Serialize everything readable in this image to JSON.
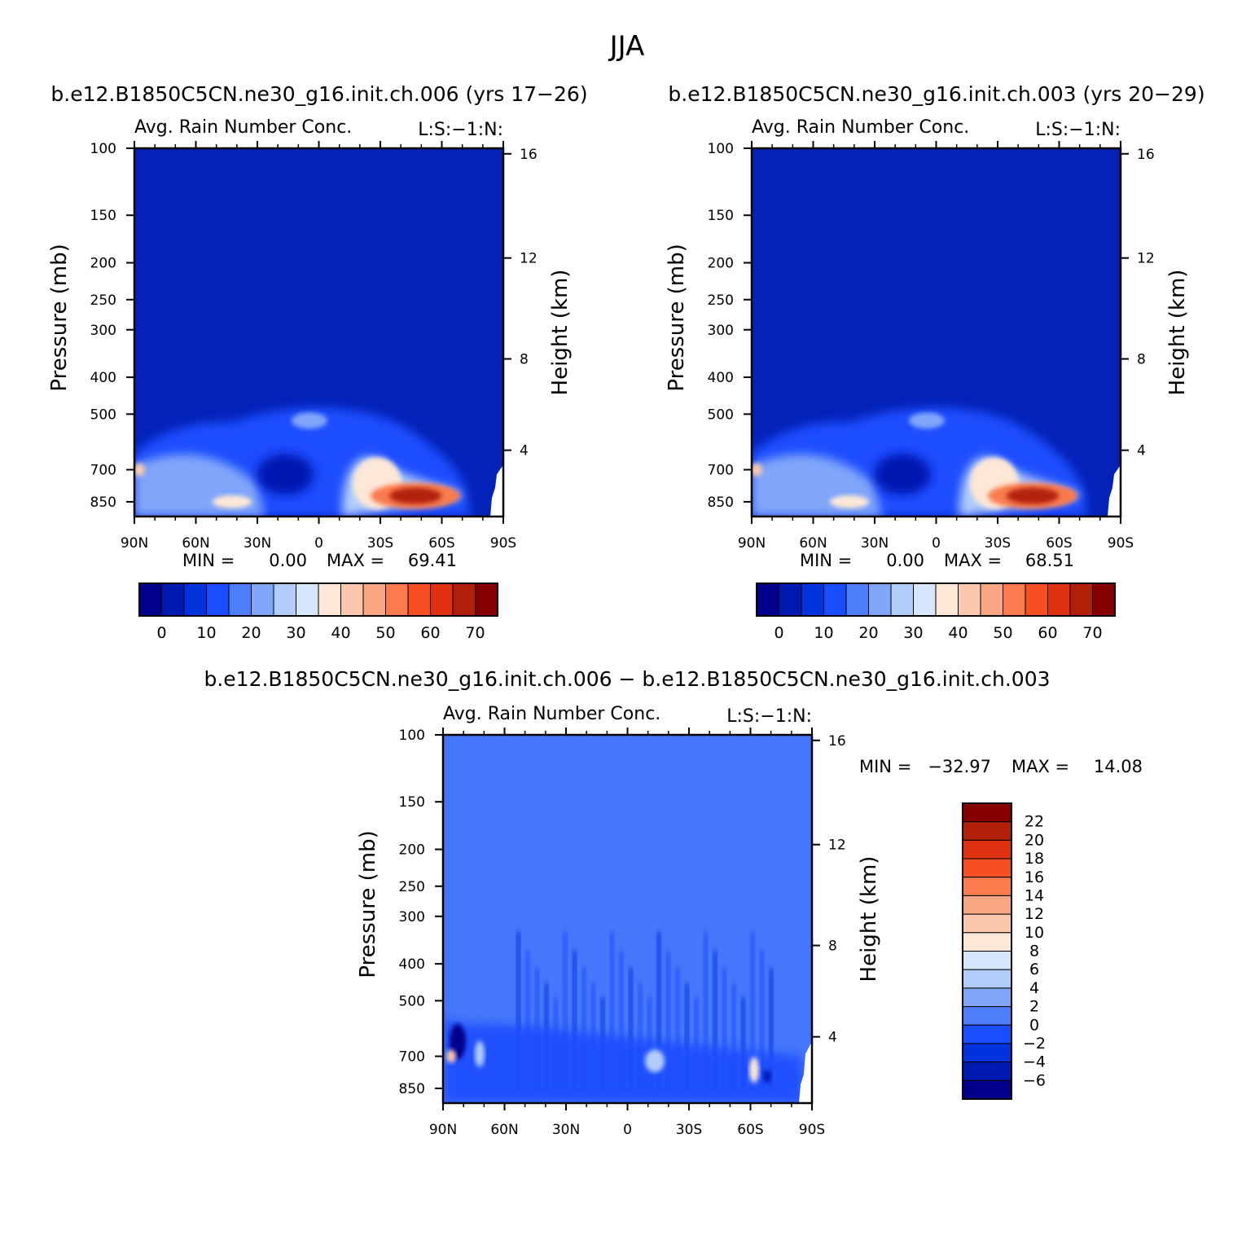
{
  "page": {
    "title": "JJA",
    "diff_title": "b.e12.B1850C5CN.ne30_g16.init.ch.006 − b.e12.B1850C5CN.ne30_g16.init.ch.003"
  },
  "colors": {
    "abs_scale": [
      "#00008b",
      "#0019b0",
      "#0033dd",
      "#1a4dff",
      "#4d7dfa",
      "#80a6fa",
      "#b3cdfa",
      "#d6e6ff",
      "#fde7d6",
      "#fbc8ad",
      "#f9a682",
      "#f97b4e",
      "#f65022",
      "#e03210",
      "#b3200a",
      "#870000"
    ],
    "diff_scale": [
      "#00008b",
      "#0019b0",
      "#0033dd",
      "#1a4dff",
      "#4d7dfa",
      "#80a6fa",
      "#b3cdfa",
      "#d6e6ff",
      "#fde7d6",
      "#fbc8ad",
      "#f9a682",
      "#f97b4e",
      "#f65022",
      "#e03210",
      "#b3200a",
      "#870000"
    ],
    "background_abs": "#0422b8",
    "background_diff": "#4576fb"
  },
  "chart_data": [
    {
      "type": "heatmap",
      "title": "b.e12.B1850C5CN.ne30_g16.init.ch.006 (yrs 17−26)",
      "subtitle": "Avg. Rain Number Conc.",
      "corner_label": "L:S:−1:N:",
      "ylabel": "Pressure (mb)",
      "y2label": "Height (km)",
      "x_ticks": [
        "90N",
        "60N",
        "30N",
        "0",
        "30S",
        "60S",
        "90S"
      ],
      "y_ticks": [
        "100",
        "150",
        "200",
        "250",
        "300",
        "400",
        "500",
        "700",
        "850"
      ],
      "y2_ticks": [
        "16",
        "12",
        "8",
        "4"
      ],
      "xlim": [
        90,
        -90
      ],
      "ylim": [
        850,
        100
      ],
      "y_scale": "log",
      "stats": {
        "min_label": "MIN =",
        "min": "0.00",
        "max_label": "MAX =",
        "max": "69.41"
      },
      "colorbar_labels": [
        "0",
        "10",
        "20",
        "30",
        "40",
        "50",
        "60",
        "70"
      ],
      "features": [
        {
          "lat": -45,
          "p": 800,
          "value": 69
        },
        {
          "lat": -30,
          "p": 760,
          "value": 45
        },
        {
          "lat": 88,
          "p": 700,
          "value": 42
        },
        {
          "lat": 40,
          "p": 840,
          "value": 38
        },
        {
          "lat": 70,
          "p": 700,
          "value": 30
        },
        {
          "lat": 20,
          "p": 560,
          "value": 22
        }
      ]
    },
    {
      "type": "heatmap",
      "title": "b.e12.B1850C5CN.ne30_g16.init.ch.003 (yrs 20−29)",
      "subtitle": "Avg. Rain Number Conc.",
      "corner_label": "L:S:−1:N:",
      "ylabel": "Pressure (mb)",
      "y2label": "Height (km)",
      "x_ticks": [
        "90N",
        "60N",
        "30N",
        "0",
        "30S",
        "60S",
        "90S"
      ],
      "y_ticks": [
        "100",
        "150",
        "200",
        "250",
        "300",
        "400",
        "500",
        "700",
        "850"
      ],
      "y2_ticks": [
        "16",
        "12",
        "8",
        "4"
      ],
      "xlim": [
        90,
        -90
      ],
      "ylim": [
        850,
        100
      ],
      "y_scale": "log",
      "stats": {
        "min_label": "MIN =",
        "min": "0.00",
        "max_label": "MAX =",
        "max": "68.51"
      },
      "colorbar_labels": [
        "0",
        "10",
        "20",
        "30",
        "40",
        "50",
        "60",
        "70"
      ],
      "features": [
        {
          "lat": -45,
          "p": 800,
          "value": 68
        },
        {
          "lat": -30,
          "p": 760,
          "value": 45
        },
        {
          "lat": 88,
          "p": 700,
          "value": 45
        },
        {
          "lat": 40,
          "p": 840,
          "value": 38
        },
        {
          "lat": 70,
          "p": 700,
          "value": 30
        },
        {
          "lat": 20,
          "p": 560,
          "value": 22
        }
      ]
    },
    {
      "type": "heatmap",
      "subtitle": "Avg. Rain Number Conc.",
      "corner_label": "L:S:−1:N:",
      "ylabel": "Pressure (mb)",
      "y2label": "Height (km)",
      "x_ticks": [
        "90N",
        "60N",
        "30N",
        "0",
        "30S",
        "60S",
        "90S"
      ],
      "y_ticks": [
        "100",
        "150",
        "200",
        "250",
        "300",
        "400",
        "500",
        "700",
        "850"
      ],
      "y2_ticks": [
        "16",
        "12",
        "8",
        "4"
      ],
      "xlim": [
        90,
        -90
      ],
      "ylim": [
        850,
        100
      ],
      "y_scale": "log",
      "stats": {
        "min_label": "MIN =",
        "min": "−32.97",
        "max_label": "MAX =",
        "max": "14.08"
      },
      "colorbar_labels": [
        "22",
        "20",
        "18",
        "16",
        "14",
        "12",
        "10",
        "8",
        "6",
        "4",
        "2",
        "0",
        "−2",
        "−4",
        "−6"
      ],
      "features": [
        {
          "lat": 85,
          "p": 640,
          "value": -32
        },
        {
          "lat": 88,
          "p": 700,
          "value": 14
        },
        {
          "lat": 80,
          "p": 680,
          "value": 6
        },
        {
          "lat": -10,
          "p": 720,
          "value": 6
        },
        {
          "lat": -62,
          "p": 740,
          "value": 10
        },
        {
          "lat": -65,
          "p": 780,
          "value": -6
        }
      ]
    }
  ]
}
